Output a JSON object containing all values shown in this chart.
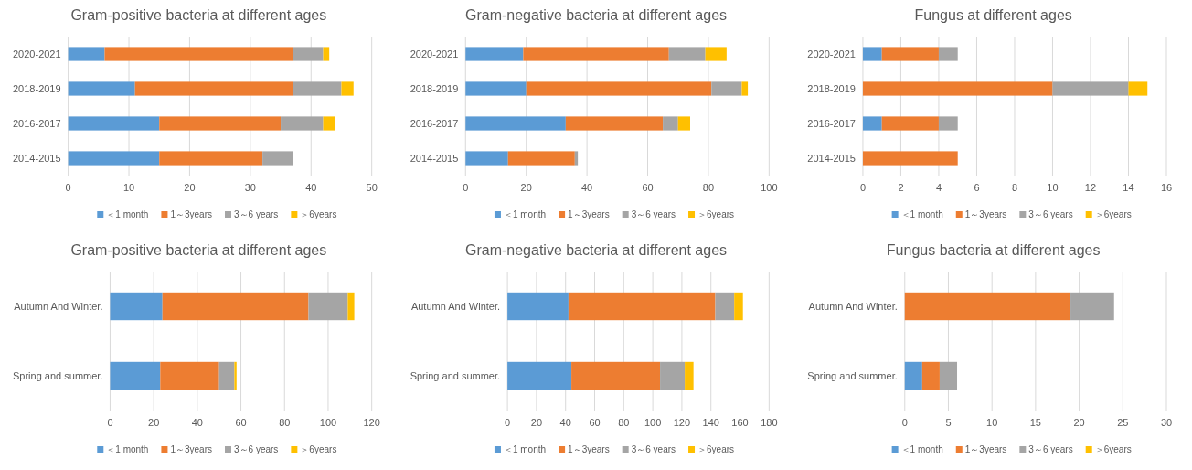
{
  "chart_data": [
    {
      "type": "bar",
      "orientation": "horizontal",
      "stacked": true,
      "title": "Gram-positive bacteria at different ages",
      "categories": [
        "2020-2021",
        "2018-2019",
        "2016-2017",
        "2014-2015"
      ],
      "xlim": [
        0,
        50
      ],
      "xticks": [
        0,
        10,
        20,
        30,
        40,
        50
      ],
      "grid": "x",
      "legend": "bottom",
      "series": [
        {
          "name": "＜1 month",
          "color": "#5b9bd5",
          "values": [
            6,
            11,
            15,
            15
          ]
        },
        {
          "name": "1～3years",
          "color": "#ed7d31",
          "values": [
            31,
            26,
            20,
            17
          ]
        },
        {
          "name": "3～6 years",
          "color": "#a5a5a5",
          "values": [
            5,
            8,
            7,
            5
          ]
        },
        {
          "name": "＞6years",
          "color": "#ffc000",
          "values": [
            1,
            2,
            2,
            0
          ]
        }
      ]
    },
    {
      "type": "bar",
      "orientation": "horizontal",
      "stacked": true,
      "title": "Gram-negative bacteria at different ages",
      "categories": [
        "2020-2021",
        "2018-2019",
        "2016-2017",
        "2014-2015"
      ],
      "xlim": [
        0,
        100
      ],
      "xticks": [
        0,
        20,
        40,
        60,
        80,
        100
      ],
      "grid": "x",
      "legend": "bottom",
      "series": [
        {
          "name": "＜1 month",
          "color": "#5b9bd5",
          "values": [
            19,
            20,
            33,
            14
          ]
        },
        {
          "name": "1～3years",
          "color": "#ed7d31",
          "values": [
            48,
            61,
            32,
            22
          ]
        },
        {
          "name": "3～6 years",
          "color": "#a5a5a5",
          "values": [
            12,
            10,
            5,
            1
          ]
        },
        {
          "name": "＞6years",
          "color": "#ffc000",
          "values": [
            7,
            2,
            4,
            0
          ]
        }
      ]
    },
    {
      "type": "bar",
      "orientation": "horizontal",
      "stacked": true,
      "title": "Fungus at different ages",
      "categories": [
        "2020-2021",
        "2018-2019",
        "2016-2017",
        "2014-2015"
      ],
      "xlim": [
        0,
        16
      ],
      "xticks": [
        0,
        2,
        4,
        6,
        8,
        10,
        12,
        14,
        16
      ],
      "grid": "x",
      "legend": "bottom",
      "series": [
        {
          "name": "＜1 month",
          "color": "#5b9bd5",
          "values": [
            1,
            0,
            1,
            0
          ]
        },
        {
          "name": "1～3years",
          "color": "#ed7d31",
          "values": [
            3,
            10,
            3,
            5
          ]
        },
        {
          "name": "3～6 years",
          "color": "#a5a5a5",
          "values": [
            1,
            4,
            1,
            0
          ]
        },
        {
          "name": "＞6years",
          "color": "#ffc000",
          "values": [
            0,
            1,
            0,
            0
          ]
        }
      ]
    },
    {
      "type": "bar",
      "orientation": "horizontal",
      "stacked": true,
      "title": "Gram-positive bacteria at different ages",
      "categories": [
        "Autumn And Winter.",
        "Spring and summer."
      ],
      "xlim": [
        0,
        120
      ],
      "xticks": [
        0,
        20,
        40,
        60,
        80,
        100,
        120
      ],
      "grid": "x",
      "legend": "bottom",
      "series": [
        {
          "name": "＜1 month",
          "color": "#5b9bd5",
          "values": [
            24,
            23
          ]
        },
        {
          "name": "1～3years",
          "color": "#ed7d31",
          "values": [
            67,
            27
          ]
        },
        {
          "name": "3～6 years",
          "color": "#a5a5a5",
          "values": [
            18,
            7
          ]
        },
        {
          "name": "＞6years",
          "color": "#ffc000",
          "values": [
            3,
            1
          ]
        }
      ]
    },
    {
      "type": "bar",
      "orientation": "horizontal",
      "stacked": true,
      "title": "Gram-negative bacteria at different ages",
      "categories": [
        "Autumn And Winter.",
        "Spring and summer."
      ],
      "xlim": [
        0,
        180
      ],
      "xticks": [
        0,
        20,
        40,
        60,
        80,
        100,
        120,
        140,
        160,
        180
      ],
      "grid": "x",
      "legend": "bottom",
      "series": [
        {
          "name": "＜1 month",
          "color": "#5b9bd5",
          "values": [
            42,
            44
          ]
        },
        {
          "name": "1～3years",
          "color": "#ed7d31",
          "values": [
            101,
            61
          ]
        },
        {
          "name": "3～6 years",
          "color": "#a5a5a5",
          "values": [
            13,
            17
          ]
        },
        {
          "name": "＞6years",
          "color": "#ffc000",
          "values": [
            6,
            6
          ]
        }
      ]
    },
    {
      "type": "bar",
      "orientation": "horizontal",
      "stacked": true,
      "title": "Fungus bacteria at different ages",
      "categories": [
        "Autumn And Winter.",
        "Spring and summer."
      ],
      "xlim": [
        0,
        30
      ],
      "xticks": [
        0,
        5,
        10,
        15,
        20,
        25,
        30
      ],
      "grid": "x",
      "legend": "bottom",
      "series": [
        {
          "name": "＜1 month",
          "color": "#5b9bd5",
          "values": [
            0,
            2
          ]
        },
        {
          "name": "1～3years",
          "color": "#ed7d31",
          "values": [
            19,
            2
          ]
        },
        {
          "name": "3～6 years",
          "color": "#a5a5a5",
          "values": [
            5,
            2
          ]
        },
        {
          "name": "＞6years",
          "color": "#ffc000",
          "values": [
            0,
            0
          ]
        }
      ]
    }
  ]
}
